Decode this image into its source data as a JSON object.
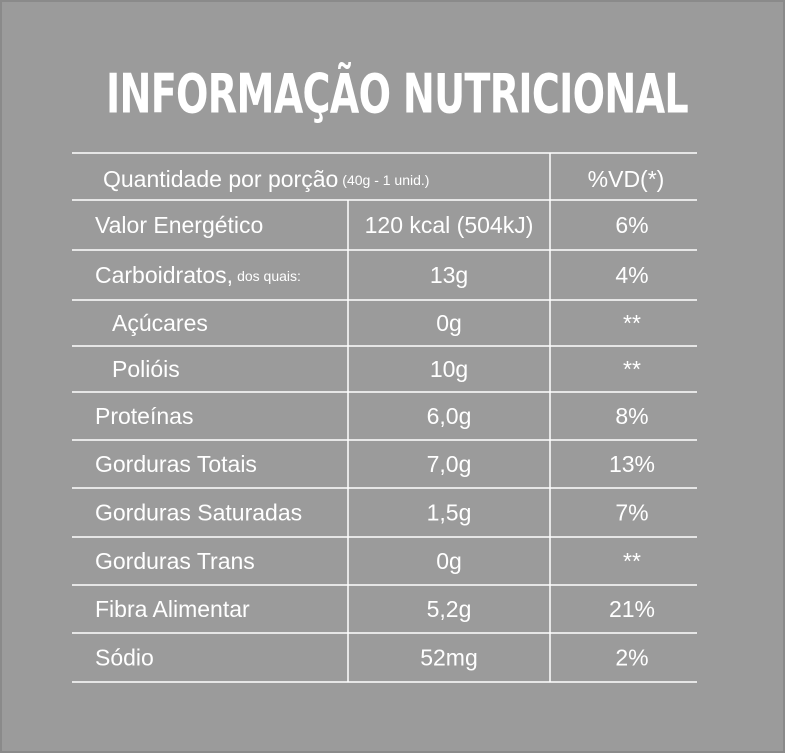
{
  "title": "INFORMAÇÃO NUTRICIONAL",
  "table": {
    "header": {
      "label": "Quantidade por porção",
      "portion": "(40g - 1 unid.)",
      "dv": "%VD(*)"
    },
    "rows": [
      {
        "name": "Valor Energético",
        "amount": "120 kcal (504kJ)",
        "dv": "6%"
      },
      {
        "name": "Carboidratos,",
        "note": "dos quais:",
        "amount": "13g",
        "dv": "4%"
      },
      {
        "name": "Açúcares",
        "amount": "0g",
        "dv": "**"
      },
      {
        "name": "Polióis",
        "amount": "10g",
        "dv": "**"
      },
      {
        "name": "Proteínas",
        "amount": "6,0g",
        "dv": "8%"
      },
      {
        "name": "Gorduras Totais",
        "amount": "7,0g",
        "dv": "13%"
      },
      {
        "name": "Gorduras Saturadas",
        "amount": "1,5g",
        "dv": "7%"
      },
      {
        "name": "Gorduras Trans",
        "amount": "0g",
        "dv": "**"
      },
      {
        "name": "Fibra Alimentar",
        "amount": "5,2g",
        "dv": "21%"
      },
      {
        "name": "Sódio",
        "amount": "52mg",
        "dv": "2%"
      }
    ]
  }
}
